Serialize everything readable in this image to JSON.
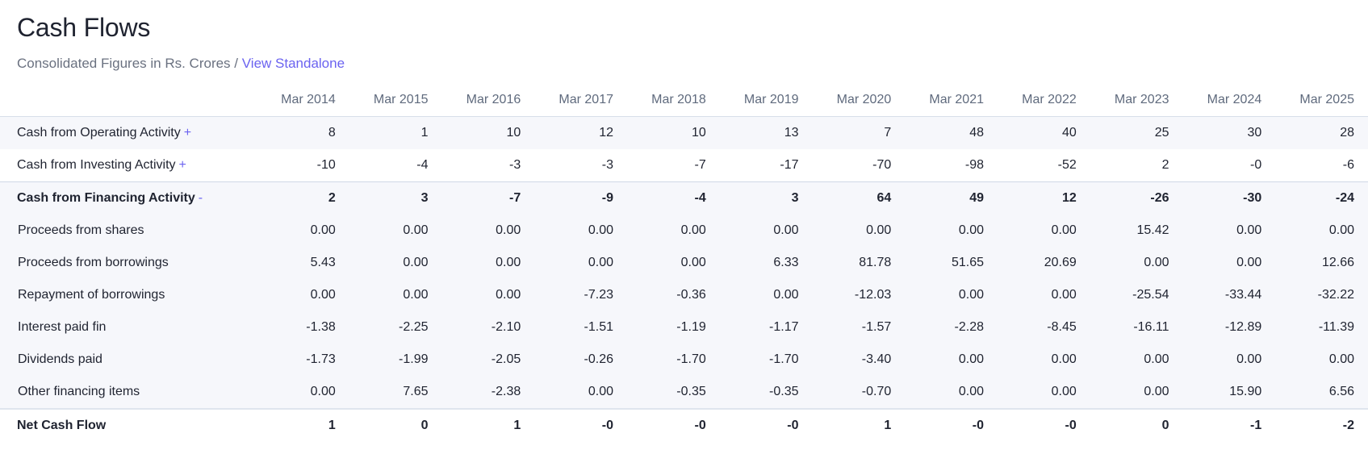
{
  "header": {
    "title": "Cash Flows",
    "subtitle": "Consolidated Figures in Rs. Crores",
    "separator": "/",
    "standalone_link": "View Standalone"
  },
  "table": {
    "columns": [
      "Mar 2014",
      "Mar 2015",
      "Mar 2016",
      "Mar 2017",
      "Mar 2018",
      "Mar 2019",
      "Mar 2020",
      "Mar 2021",
      "Mar 2022",
      "Mar 2023",
      "Mar 2024",
      "Mar 2025"
    ],
    "rows": [
      {
        "label": "Cash from Operating Activity",
        "toggle": "+",
        "values": [
          "8",
          "1",
          "10",
          "12",
          "10",
          "13",
          "7",
          "48",
          "40",
          "25",
          "30",
          "28"
        ]
      },
      {
        "label": "Cash from Investing Activity",
        "toggle": "+",
        "values": [
          "-10",
          "-4",
          "-3",
          "-3",
          "-7",
          "-17",
          "-70",
          "-98",
          "-52",
          "2",
          "-0",
          "-6"
        ]
      },
      {
        "label": "Cash from Financing Activity",
        "toggle": "-",
        "values": [
          "2",
          "3",
          "-7",
          "-9",
          "-4",
          "3",
          "64",
          "49",
          "12",
          "-26",
          "-30",
          "-24"
        ]
      },
      {
        "label": "Proceeds from shares",
        "values": [
          "0.00",
          "0.00",
          "0.00",
          "0.00",
          "0.00",
          "0.00",
          "0.00",
          "0.00",
          "0.00",
          "15.42",
          "0.00",
          "0.00"
        ]
      },
      {
        "label": "Proceeds from borrowings",
        "values": [
          "5.43",
          "0.00",
          "0.00",
          "0.00",
          "0.00",
          "6.33",
          "81.78",
          "51.65",
          "20.69",
          "0.00",
          "0.00",
          "12.66"
        ]
      },
      {
        "label": "Repayment of borrowings",
        "values": [
          "0.00",
          "0.00",
          "0.00",
          "-7.23",
          "-0.36",
          "0.00",
          "-12.03",
          "0.00",
          "0.00",
          "-25.54",
          "-33.44",
          "-32.22"
        ]
      },
      {
        "label": "Interest paid fin",
        "values": [
          "-1.38",
          "-2.25",
          "-2.10",
          "-1.51",
          "-1.19",
          "-1.17",
          "-1.57",
          "-2.28",
          "-8.45",
          "-16.11",
          "-12.89",
          "-11.39"
        ]
      },
      {
        "label": "Dividends paid",
        "values": [
          "-1.73",
          "-1.99",
          "-2.05",
          "-0.26",
          "-1.70",
          "-1.70",
          "-3.40",
          "0.00",
          "0.00",
          "0.00",
          "0.00",
          "0.00"
        ]
      },
      {
        "label": "Other financing items",
        "values": [
          "0.00",
          "7.65",
          "-2.38",
          "0.00",
          "-0.35",
          "-0.35",
          "-0.70",
          "0.00",
          "0.00",
          "0.00",
          "15.90",
          "6.56"
        ]
      },
      {
        "label": "Net Cash Flow",
        "values": [
          "1",
          "0",
          "1",
          "-0",
          "-0",
          "-0",
          "1",
          "-0",
          "-0",
          "0",
          "-1",
          "-2"
        ]
      }
    ]
  }
}
